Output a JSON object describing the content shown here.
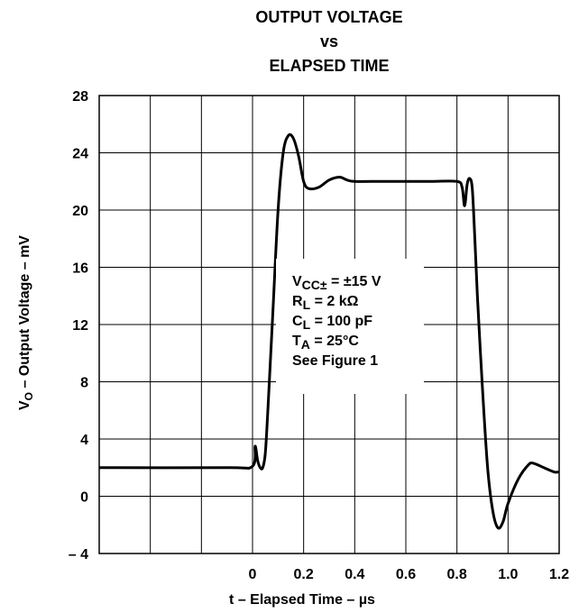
{
  "chart_data": {
    "type": "line",
    "title_lines": [
      "OUTPUT VOLTAGE",
      "vs",
      "ELAPSED TIME"
    ],
    "xlabel": "t – Elapsed Time – µs",
    "ylabel": "V_O – Output Voltage – mV",
    "xlim": [
      -0.6,
      1.2
    ],
    "ylim": [
      -4,
      28
    ],
    "x_ticks": [
      0,
      0.2,
      0.4,
      0.6,
      0.8,
      1.0,
      1.2
    ],
    "x_tick_labels": [
      "0",
      "0.2",
      "0.4",
      "0.6",
      "0.8",
      "1.0",
      "1.2"
    ],
    "y_ticks": [
      -4,
      0,
      4,
      8,
      12,
      16,
      20,
      24,
      28
    ],
    "y_tick_labels": [
      "– 4",
      "0",
      "4",
      "8",
      "12",
      "16",
      "20",
      "24",
      "28"
    ],
    "grid": true,
    "conditions": [
      "VCC± = ±15 V",
      "RL = 2 kΩ",
      "CL = 100 pF",
      "TA = 25°C",
      "See Figure 1"
    ],
    "series": [
      {
        "x": [
          -0.6,
          -0.1,
          0.0,
          0.01,
          0.02,
          0.03,
          0.04,
          0.05,
          0.06,
          0.08,
          0.1,
          0.12,
          0.14,
          0.16,
          0.18,
          0.2,
          0.22,
          0.26,
          0.3,
          0.34,
          0.37,
          0.4,
          0.5,
          0.6,
          0.7,
          0.8,
          0.82,
          0.83,
          0.84,
          0.85,
          0.86,
          0.87,
          0.88,
          0.9,
          0.92,
          0.94,
          0.96,
          0.98,
          1.0,
          1.04,
          1.08,
          1.1,
          1.14,
          1.18,
          1.2
        ],
        "y": [
          2.0,
          2.0,
          2.1,
          3.5,
          2.5,
          2.0,
          2.0,
          3.0,
          6.0,
          13.0,
          20.0,
          24.0,
          25.2,
          25.0,
          23.8,
          22.0,
          21.5,
          21.6,
          22.1,
          22.3,
          22.1,
          22.0,
          22.0,
          22.0,
          22.0,
          22.0,
          21.6,
          20.3,
          21.8,
          22.2,
          21.5,
          18.0,
          14.0,
          7.5,
          2.0,
          -1.0,
          -2.2,
          -1.8,
          -0.5,
          1.2,
          2.2,
          2.3,
          2.0,
          1.7,
          1.7
        ]
      }
    ]
  }
}
